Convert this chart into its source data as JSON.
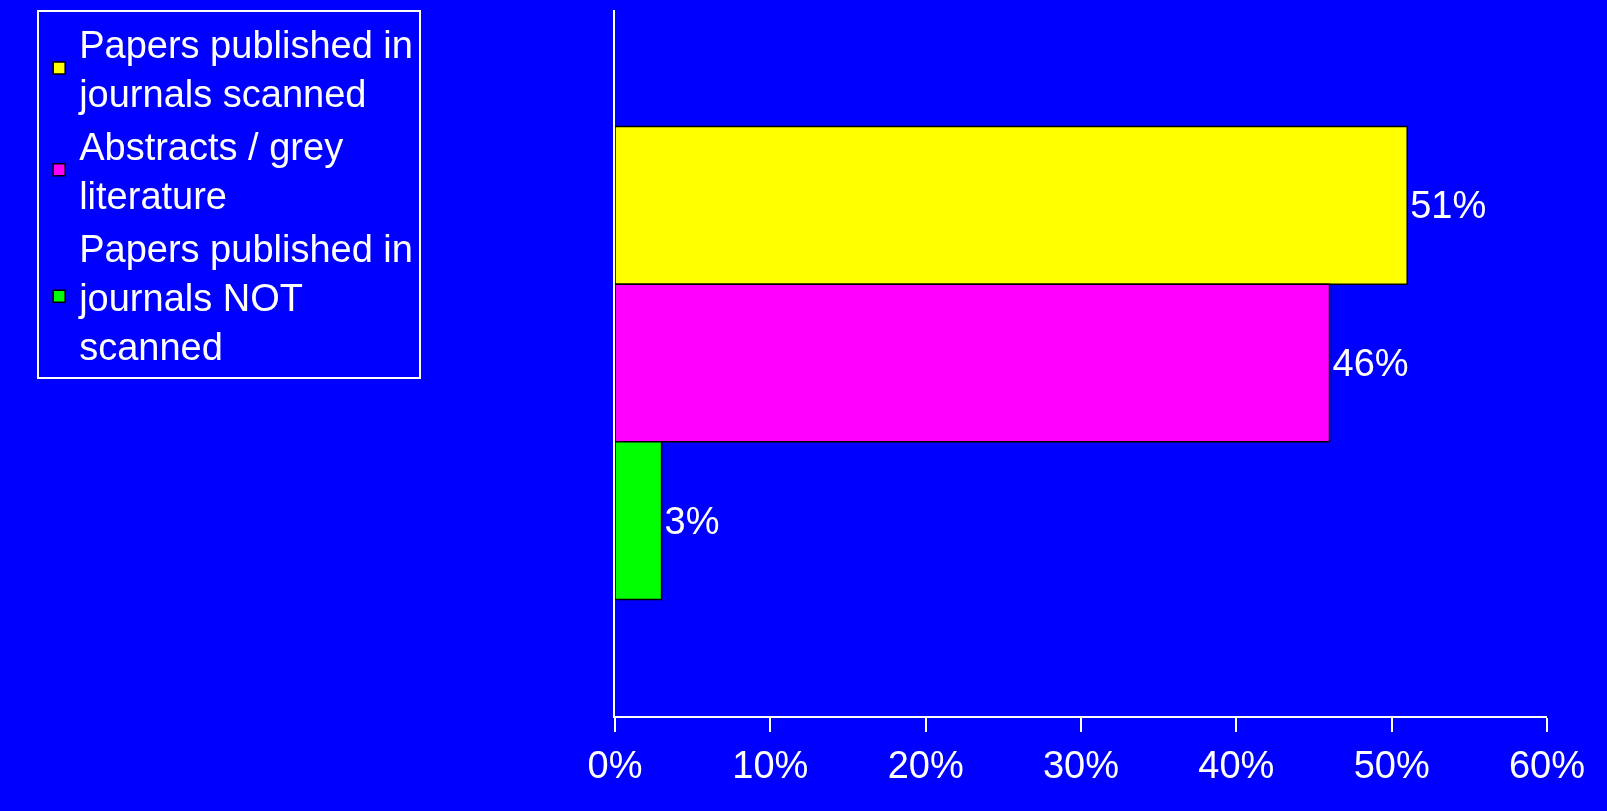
{
  "chart_data": {
    "type": "bar",
    "orientation": "horizontal",
    "categories": [
      null
    ],
    "series": [
      {
        "name": "Papers published in journals scanned",
        "color": "#ffff00",
        "values": [
          51
        ],
        "value_labels": [
          "51%"
        ]
      },
      {
        "name": "Abstracts / grey literature",
        "color": "#ff00ff",
        "values": [
          46
        ],
        "value_labels": [
          "46%"
        ]
      },
      {
        "name": "Papers published in journals NOT scanned",
        "color": "#00ff00",
        "values": [
          3
        ],
        "value_labels": [
          "3%"
        ]
      }
    ],
    "xlim": [
      0,
      60
    ],
    "xticks": [
      {
        "value": 0,
        "label": "0%"
      },
      {
        "value": 10,
        "label": "10%"
      },
      {
        "value": 20,
        "label": "20%"
      },
      {
        "value": 30,
        "label": "30%"
      },
      {
        "value": 40,
        "label": "40%"
      },
      {
        "value": 50,
        "label": "50%"
      },
      {
        "value": 60,
        "label": "60%"
      }
    ],
    "grid": false,
    "legend": "left"
  }
}
